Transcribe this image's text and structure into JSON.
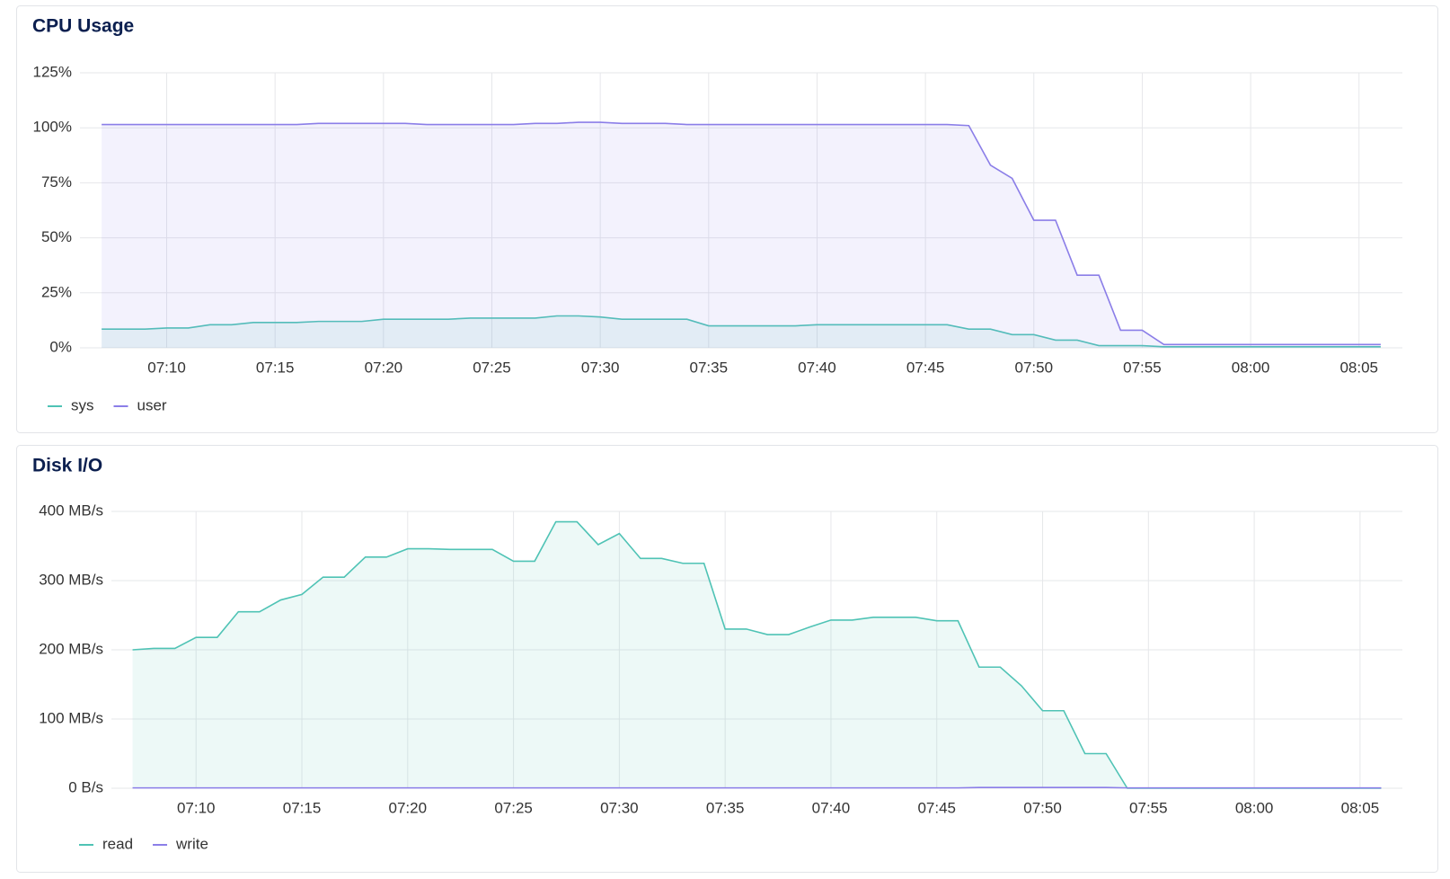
{
  "chart_data": [
    {
      "type": "line",
      "title": "CPU Usage",
      "x": [
        "07:07",
        "07:08",
        "07:09",
        "07:10",
        "07:11",
        "07:12",
        "07:13",
        "07:14",
        "07:15",
        "07:16",
        "07:17",
        "07:18",
        "07:19",
        "07:20",
        "07:21",
        "07:22",
        "07:23",
        "07:24",
        "07:25",
        "07:26",
        "07:27",
        "07:28",
        "07:29",
        "07:30",
        "07:31",
        "07:32",
        "07:33",
        "07:34",
        "07:35",
        "07:36",
        "07:37",
        "07:38",
        "07:39",
        "07:40",
        "07:41",
        "07:42",
        "07:43",
        "07:44",
        "07:45",
        "07:46",
        "07:47",
        "07:48",
        "07:49",
        "07:50",
        "07:51",
        "07:52",
        "07:53",
        "07:54",
        "07:55",
        "07:56",
        "07:57",
        "07:58",
        "07:59",
        "08:00",
        "08:01",
        "08:02",
        "08:03",
        "08:04",
        "08:05",
        "08:06"
      ],
      "series": [
        {
          "name": "sys",
          "color": "#4fc3b5",
          "values": [
            8.5,
            8.5,
            8.5,
            9,
            9,
            10.5,
            10.5,
            11.5,
            11.5,
            11.5,
            12,
            12,
            12,
            13,
            13,
            13,
            13,
            13.5,
            13.5,
            13.5,
            13.5,
            14.5,
            14.5,
            14,
            13,
            13,
            13,
            13,
            10,
            10,
            10,
            10,
            10,
            10.5,
            10.5,
            10.5,
            10.5,
            10.5,
            10.5,
            10.5,
            8.5,
            8.5,
            6,
            6,
            3.5,
            3.5,
            1,
            1,
            1,
            0.5,
            0.5,
            0.5,
            0.5,
            0.5,
            0.5,
            0.5,
            0.5,
            0.5,
            0.5,
            0.5
          ]
        },
        {
          "name": "user",
          "color": "#8b7ee8",
          "values": [
            101.5,
            101.5,
            101.5,
            101.5,
            101.5,
            101.5,
            101.5,
            101.5,
            101.5,
            101.5,
            102,
            102,
            102,
            102,
            102,
            101.5,
            101.5,
            101.5,
            101.5,
            101.5,
            102,
            102,
            102.5,
            102.5,
            102,
            102,
            102,
            101.5,
            101.5,
            101.5,
            101.5,
            101.5,
            101.5,
            101.5,
            101.5,
            101.5,
            101.5,
            101.5,
            101.5,
            101.5,
            101,
            83,
            77,
            58,
            58,
            33,
            33,
            8,
            8,
            1.5,
            1.5,
            1.5,
            1.5,
            1.5,
            1.5,
            1.5,
            1.5,
            1.5,
            1.5,
            1.5
          ]
        }
      ],
      "xlim": [
        "07:06",
        "08:07"
      ],
      "xticks": [
        "07:10",
        "07:15",
        "07:20",
        "07:25",
        "07:30",
        "07:35",
        "07:40",
        "07:45",
        "07:50",
        "07:55",
        "08:00",
        "08:05"
      ],
      "ylim": [
        0,
        125
      ],
      "yticks": [
        {
          "value": 0,
          "label": "0%"
        },
        {
          "value": 25,
          "label": "25%"
        },
        {
          "value": 50,
          "label": "50%"
        },
        {
          "value": 75,
          "label": "75%"
        },
        {
          "value": 100,
          "label": "100%"
        },
        {
          "value": 125,
          "label": "125%"
        }
      ],
      "grid": true,
      "legend": "bottom-left"
    },
    {
      "type": "line",
      "title": "Disk I/O",
      "x": [
        "07:07",
        "07:08",
        "07:09",
        "07:10",
        "07:11",
        "07:12",
        "07:13",
        "07:14",
        "07:15",
        "07:16",
        "07:17",
        "07:18",
        "07:19",
        "07:20",
        "07:21",
        "07:22",
        "07:23",
        "07:24",
        "07:25",
        "07:26",
        "07:27",
        "07:28",
        "07:29",
        "07:30",
        "07:31",
        "07:32",
        "07:33",
        "07:34",
        "07:35",
        "07:36",
        "07:37",
        "07:38",
        "07:39",
        "07:40",
        "07:41",
        "07:42",
        "07:43",
        "07:44",
        "07:45",
        "07:46",
        "07:47",
        "07:48",
        "07:49",
        "07:50",
        "07:51",
        "07:52",
        "07:53",
        "07:54",
        "07:55",
        "07:56",
        "07:57",
        "07:58",
        "07:59",
        "08:00",
        "08:01",
        "08:02",
        "08:03",
        "08:04",
        "08:05",
        "08:06"
      ],
      "series": [
        {
          "name": "read",
          "color": "#4fc3b5",
          "values": [
            200,
            202,
            202,
            218,
            218,
            255,
            255,
            272,
            280,
            305,
            305,
            334,
            334,
            346,
            346,
            345,
            345,
            345,
            328,
            328,
            385,
            385,
            352,
            368,
            332,
            332,
            325,
            325,
            230,
            230,
            222,
            222,
            233,
            243,
            243,
            247,
            247,
            247,
            242,
            242,
            175,
            175,
            148,
            112,
            112,
            50,
            50,
            0,
            0,
            0,
            0,
            0,
            0,
            0,
            0,
            0,
            0,
            0,
            0,
            0
          ]
        },
        {
          "name": "write",
          "color": "#8b7ee8",
          "values": [
            0.5,
            0.5,
            0.5,
            0.5,
            0.5,
            0.5,
            0.5,
            0.5,
            0.5,
            0.5,
            0.5,
            0.5,
            0.5,
            0.5,
            0.5,
            0.5,
            0.5,
            0.5,
            0.5,
            0.5,
            0.5,
            0.5,
            0.5,
            0.5,
            0.5,
            0.5,
            0.5,
            0.5,
            0.5,
            0.5,
            0.5,
            0.5,
            0.5,
            0.5,
            0.5,
            0.5,
            0.5,
            0.5,
            0.5,
            0.5,
            1,
            1,
            1,
            1,
            1,
            1,
            1,
            0.5,
            0.5,
            0.5,
            0.5,
            0.5,
            0.5,
            0.5,
            0.5,
            0.5,
            0.5,
            0.5,
            0.5,
            0.5
          ]
        }
      ],
      "xlim": [
        "07:06",
        "08:07"
      ],
      "xticks": [
        "07:10",
        "07:15",
        "07:20",
        "07:25",
        "07:30",
        "07:35",
        "07:40",
        "07:45",
        "07:50",
        "07:55",
        "08:00",
        "08:05"
      ],
      "ylim": [
        0,
        400
      ],
      "yticks": [
        {
          "value": 0,
          "label": "0 B/s"
        },
        {
          "value": 100,
          "label": "100 MB/s"
        },
        {
          "value": 200,
          "label": "200 MB/s"
        },
        {
          "value": 300,
          "label": "300 MB/s"
        },
        {
          "value": 400,
          "label": "400 MB/s"
        }
      ],
      "grid": true,
      "legend": "bottom-left"
    }
  ]
}
